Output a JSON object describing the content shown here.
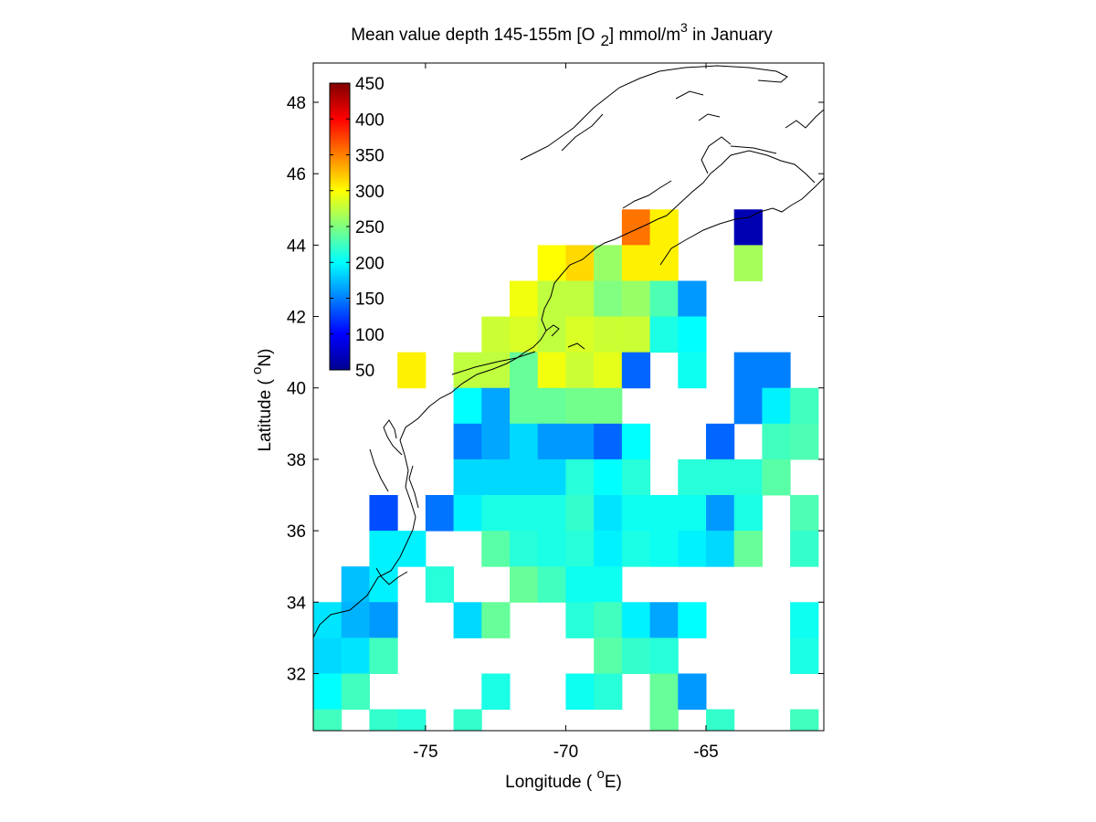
{
  "chart_data": {
    "type": "heatmap",
    "title": {
      "main": "Mean value depth 145-155m [O",
      "sub": "2",
      "mid": "] mmol/m",
      "sup": "3",
      "tail": " in January"
    },
    "xlabel": {
      "pre": "Longitude ( ",
      "sup": "o",
      "post": "E)"
    },
    "ylabel": {
      "pre": "Latitude ( ",
      "sup": "o",
      "post": "N)"
    },
    "xlim": [
      -79.0,
      -60.8
    ],
    "ylim": [
      30.4,
      49.1
    ],
    "xticks": [
      -75,
      -70,
      -65
    ],
    "yticks": [
      32,
      34,
      36,
      38,
      40,
      42,
      44,
      46,
      48
    ],
    "grid": false,
    "colorbar": {
      "position": "top-left",
      "range": [
        50,
        450
      ],
      "ticks": [
        50,
        100,
        150,
        200,
        250,
        300,
        350,
        400,
        450
      ],
      "colormap": "jet"
    },
    "cell_size_degrees": 1,
    "cells": [
      [
        -67.5,
        44.5,
        355
      ],
      [
        -66.5,
        44.5,
        305
      ],
      [
        -63.5,
        44.5,
        70
      ],
      [
        -70.5,
        43.5,
        300
      ],
      [
        -69.5,
        43.5,
        315
      ],
      [
        -68.5,
        43.5,
        260
      ],
      [
        -67.5,
        43.5,
        305
      ],
      [
        -66.5,
        43.5,
        305
      ],
      [
        -63.5,
        43.5,
        265
      ],
      [
        -71.5,
        42.5,
        295
      ],
      [
        -70.5,
        42.5,
        275
      ],
      [
        -69.5,
        42.5,
        275
      ],
      [
        -68.5,
        42.5,
        250
      ],
      [
        -67.5,
        42.5,
        260
      ],
      [
        -66.5,
        42.5,
        230
      ],
      [
        -65.5,
        42.5,
        160
      ],
      [
        -72.5,
        41.5,
        280
      ],
      [
        -71.5,
        41.5,
        285
      ],
      [
        -70.5,
        41.5,
        275
      ],
      [
        -69.5,
        41.5,
        285
      ],
      [
        -68.5,
        41.5,
        280
      ],
      [
        -67.5,
        41.5,
        280
      ],
      [
        -66.5,
        41.5,
        210
      ],
      [
        -65.5,
        41.5,
        200
      ],
      [
        -75.5,
        40.5,
        305
      ],
      [
        -73.5,
        40.5,
        275
      ],
      [
        -72.5,
        40.5,
        275
      ],
      [
        -71.5,
        40.5,
        240
      ],
      [
        -70.5,
        40.5,
        295
      ],
      [
        -69.5,
        40.5,
        280
      ],
      [
        -68.5,
        40.5,
        290
      ],
      [
        -67.5,
        40.5,
        140
      ],
      [
        -65.5,
        40.5,
        205
      ],
      [
        -63.5,
        40.5,
        150
      ],
      [
        -62.5,
        40.5,
        150
      ],
      [
        -73.5,
        39.5,
        200
      ],
      [
        -72.5,
        39.5,
        165
      ],
      [
        -71.5,
        39.5,
        240
      ],
      [
        -70.5,
        39.5,
        240
      ],
      [
        -69.5,
        39.5,
        245
      ],
      [
        -68.5,
        39.5,
        245
      ],
      [
        -63.5,
        39.5,
        150
      ],
      [
        -62.5,
        39.5,
        195
      ],
      [
        -61.5,
        39.5,
        225
      ],
      [
        -73.5,
        38.5,
        150
      ],
      [
        -72.5,
        38.5,
        165
      ],
      [
        -71.5,
        38.5,
        185
      ],
      [
        -70.5,
        38.5,
        160
      ],
      [
        -69.5,
        38.5,
        160
      ],
      [
        -68.5,
        38.5,
        140
      ],
      [
        -67.5,
        38.5,
        200
      ],
      [
        -64.5,
        38.5,
        140
      ],
      [
        -62.5,
        38.5,
        225
      ],
      [
        -61.5,
        38.5,
        230
      ],
      [
        -73.5,
        37.5,
        185
      ],
      [
        -72.5,
        37.5,
        185
      ],
      [
        -71.5,
        37.5,
        185
      ],
      [
        -70.5,
        37.5,
        185
      ],
      [
        -69.5,
        37.5,
        215
      ],
      [
        -68.5,
        37.5,
        200
      ],
      [
        -67.5,
        37.5,
        215
      ],
      [
        -65.5,
        37.5,
        215
      ],
      [
        -64.5,
        37.5,
        215
      ],
      [
        -63.5,
        37.5,
        215
      ],
      [
        -62.5,
        37.5,
        235
      ],
      [
        -76.5,
        36.5,
        130
      ],
      [
        -74.5,
        36.5,
        145
      ],
      [
        -73.5,
        36.5,
        195
      ],
      [
        -72.5,
        36.5,
        210
      ],
      [
        -71.5,
        36.5,
        210
      ],
      [
        -70.5,
        36.5,
        210
      ],
      [
        -69.5,
        36.5,
        220
      ],
      [
        -68.5,
        36.5,
        190
      ],
      [
        -67.5,
        36.5,
        205
      ],
      [
        -66.5,
        36.5,
        205
      ],
      [
        -65.5,
        36.5,
        205
      ],
      [
        -64.5,
        36.5,
        160
      ],
      [
        -63.5,
        36.5,
        210
      ],
      [
        -61.5,
        36.5,
        230
      ],
      [
        -76.5,
        35.5,
        195
      ],
      [
        -75.5,
        35.5,
        195
      ],
      [
        -72.5,
        35.5,
        235
      ],
      [
        -71.5,
        35.5,
        215
      ],
      [
        -70.5,
        35.5,
        210
      ],
      [
        -69.5,
        35.5,
        215
      ],
      [
        -68.5,
        35.5,
        195
      ],
      [
        -67.5,
        35.5,
        210
      ],
      [
        -66.5,
        35.5,
        205
      ],
      [
        -65.5,
        35.5,
        195
      ],
      [
        -64.5,
        35.5,
        185
      ],
      [
        -63.5,
        35.5,
        240
      ],
      [
        -61.5,
        35.5,
        220
      ],
      [
        -77.5,
        34.5,
        175
      ],
      [
        -76.5,
        34.5,
        195
      ],
      [
        -74.5,
        34.5,
        215
      ],
      [
        -71.5,
        34.5,
        240
      ],
      [
        -70.5,
        34.5,
        225
      ],
      [
        -69.5,
        34.5,
        205
      ],
      [
        -68.5,
        34.5,
        205
      ],
      [
        -78.5,
        33.5,
        190
      ],
      [
        -77.5,
        33.5,
        170
      ],
      [
        -76.5,
        33.5,
        160
      ],
      [
        -73.5,
        33.5,
        185
      ],
      [
        -72.5,
        33.5,
        240
      ],
      [
        -69.5,
        33.5,
        215
      ],
      [
        -68.5,
        33.5,
        225
      ],
      [
        -67.5,
        33.5,
        195
      ],
      [
        -66.5,
        33.5,
        165
      ],
      [
        -65.5,
        33.5,
        200
      ],
      [
        -61.5,
        33.5,
        205
      ],
      [
        -79.5,
        32.5,
        180
      ],
      [
        -78.5,
        32.5,
        185
      ],
      [
        -77.5,
        32.5,
        190
      ],
      [
        -76.5,
        32.5,
        225
      ],
      [
        -68.5,
        32.5,
        235
      ],
      [
        -67.5,
        32.5,
        220
      ],
      [
        -66.5,
        32.5,
        215
      ],
      [
        -61.5,
        32.5,
        210
      ],
      [
        -79.5,
        31.5,
        200
      ],
      [
        -78.5,
        31.5,
        200
      ],
      [
        -77.5,
        31.5,
        225
      ],
      [
        -72.5,
        31.5,
        210
      ],
      [
        -69.5,
        31.5,
        205
      ],
      [
        -68.5,
        31.5,
        215
      ],
      [
        -66.5,
        31.5,
        240
      ],
      [
        -65.5,
        31.5,
        160
      ],
      [
        -78.5,
        30.5,
        225
      ],
      [
        -76.5,
        30.5,
        220
      ],
      [
        -75.5,
        30.5,
        215
      ],
      [
        -73.5,
        30.5,
        220
      ],
      [
        -66.5,
        30.5,
        240
      ],
      [
        -64.5,
        30.5,
        220
      ],
      [
        -61.5,
        30.5,
        225
      ]
    ]
  }
}
